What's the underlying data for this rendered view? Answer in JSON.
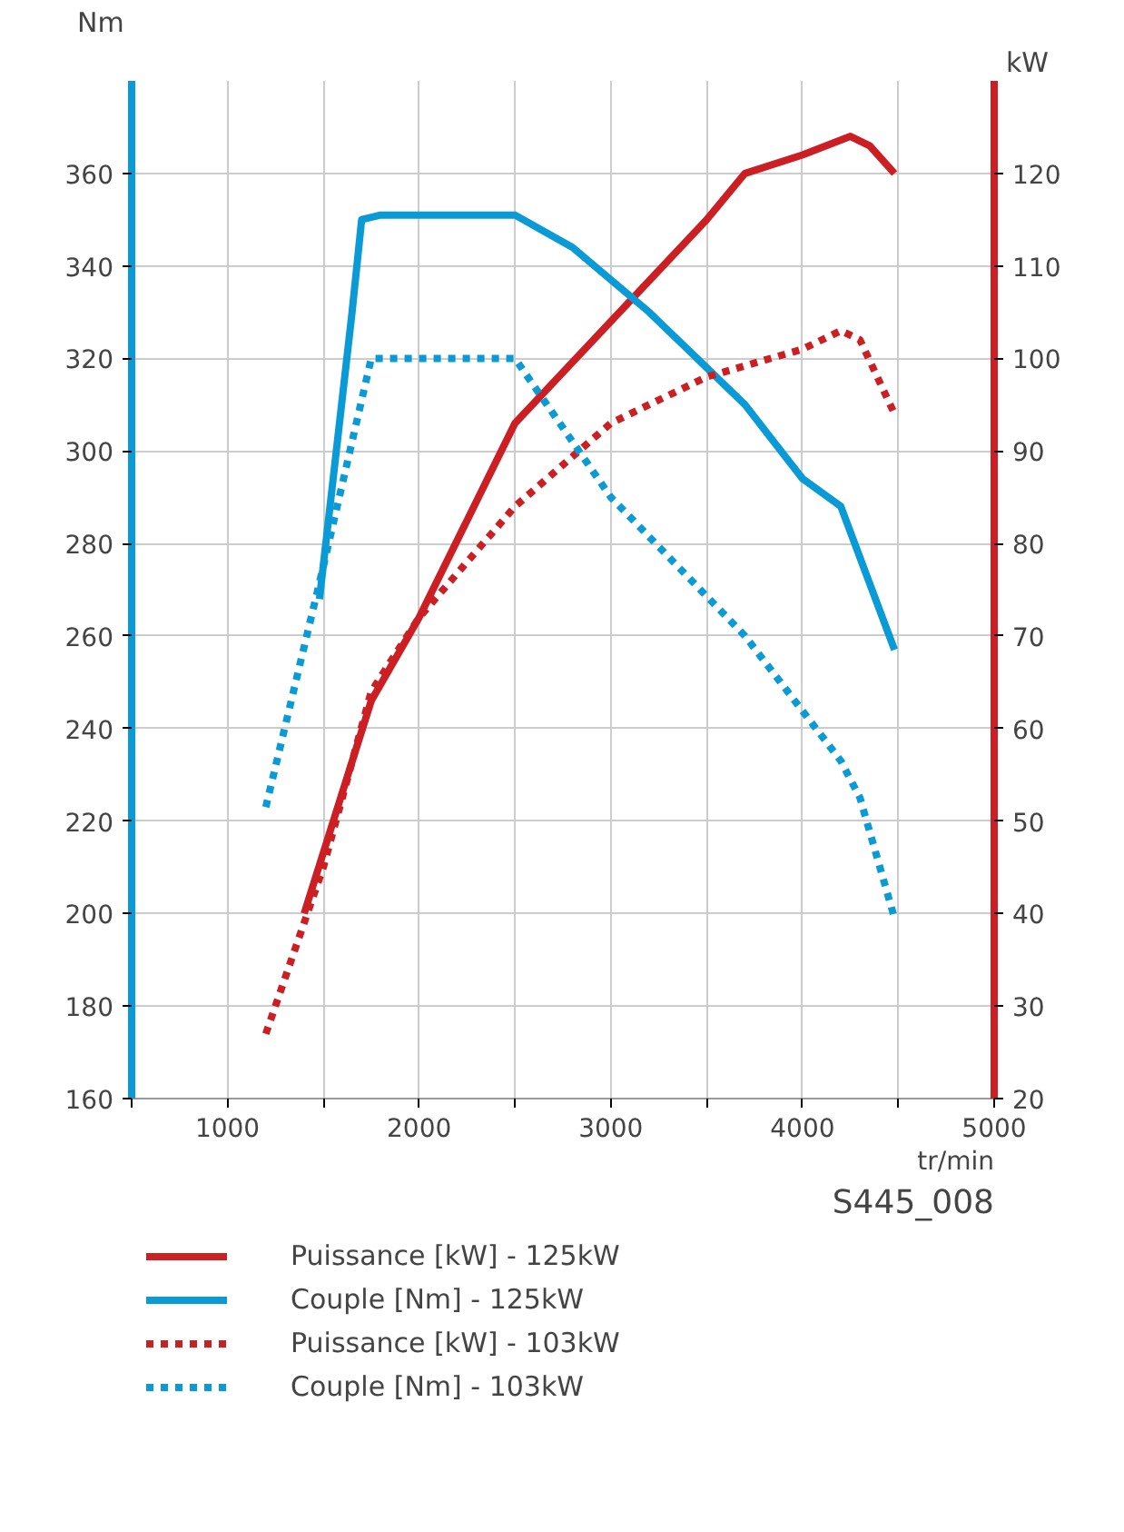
{
  "chart_data": {
    "type": "line",
    "xlabel": "tr/min",
    "ylabel": "Nm",
    "y2label": "kW",
    "annotations": [
      "S445_008"
    ],
    "xlim": [
      500,
      5000
    ],
    "xticks": [
      {
        "value": 500,
        "label": null
      },
      1000,
      {
        "value": 1500,
        "label": null
      },
      2000,
      {
        "value": 2500,
        "label": null
      },
      3000,
      {
        "value": 3500,
        "label": null
      },
      4000,
      {
        "value": 4500,
        "label": null
      },
      5000
    ],
    "ylim": [
      160,
      380
    ],
    "yticks": [
      160,
      180,
      200,
      220,
      240,
      260,
      280,
      300,
      320,
      340,
      360
    ],
    "y2lim": [
      20,
      130
    ],
    "y2ticks": [
      20,
      30,
      40,
      50,
      60,
      70,
      80,
      90,
      100,
      110,
      120
    ],
    "grid": true,
    "legend": "bottom",
    "marker": "none",
    "series": [
      {
        "name": "Puissance [kW] - 125kW",
        "color": "#cc1f24",
        "axis": "y2",
        "line_style": "solid",
        "x": [
          1400,
          1750,
          2000,
          2500,
          3000,
          3500,
          3700,
          4000,
          4250,
          4350,
          4480
        ],
        "values": [
          40,
          63,
          72,
          93,
          104,
          115,
          120,
          122,
          124,
          123,
          120
        ]
      },
      {
        "name": "Couple [Nm] - 125kW",
        "color": "#0a9ad6",
        "line_style": "solid",
        "x": [
          1480,
          1650,
          1700,
          1800,
          2500,
          2800,
          3200,
          3700,
          4000,
          4200,
          4480
        ],
        "values": [
          268,
          330,
          350,
          351,
          351,
          344,
          330,
          310,
          294,
          288,
          257
        ]
      },
      {
        "name": "Puissance [kW] - 103kW",
        "color": "#cc1f24",
        "axis": "y2",
        "line_style": "dotted",
        "x": [
          1200,
          1500,
          1750,
          2000,
          2500,
          3000,
          3500,
          4000,
          4200,
          4300,
          4480
        ],
        "values": [
          27,
          45,
          64,
          72,
          84,
          93,
          98,
          101,
          103,
          102,
          94
        ]
      },
      {
        "name": "Couple [Nm] - 103kW",
        "color": "#0a9ad6",
        "line_style": "dotted",
        "x": [
          1200,
          1500,
          1750,
          2500,
          3000,
          3700,
          4200,
          4300,
          4480
        ],
        "values": [
          223,
          275,
          320,
          320,
          290,
          260,
          233,
          225,
          199
        ]
      }
    ]
  }
}
